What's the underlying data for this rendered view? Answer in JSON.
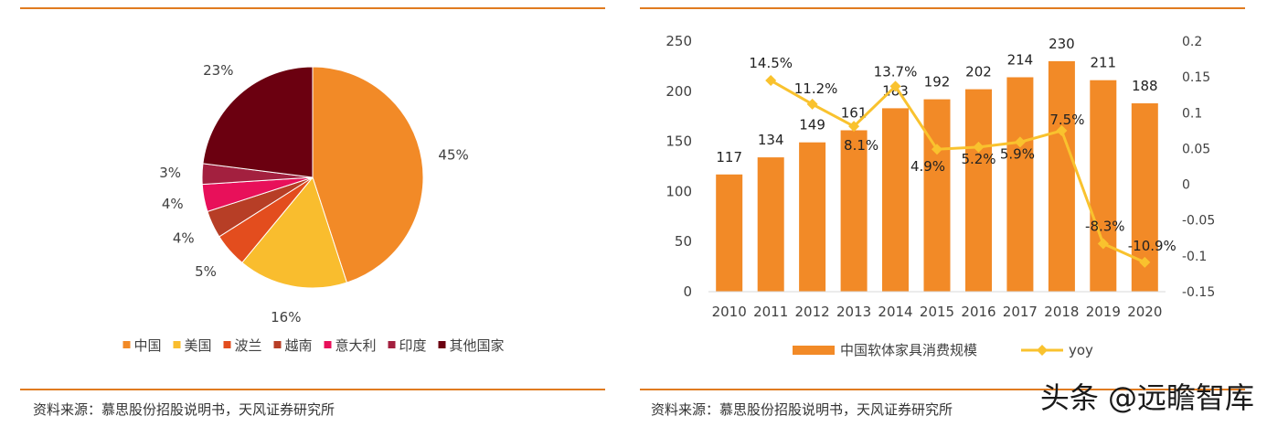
{
  "colors": {
    "rule": "#e07b20",
    "bar": "#f28a27",
    "yoy": "#f9c22e"
  },
  "left": {
    "source": "资料来源：慕思股份招股说明书，天风证券研究所"
  },
  "right": {
    "source": "资料来源：慕思股份招股说明书，天风证券研究所"
  },
  "watermark": "头条 @远瞻智库",
  "chart_data": [
    {
      "type": "pie",
      "title": "",
      "slices": [
        {
          "label": "中国",
          "value": 45,
          "value_label": "45%",
          "color": "#f28a27"
        },
        {
          "label": "美国",
          "value": 16,
          "value_label": "16%",
          "color": "#f9bd2e"
        },
        {
          "label": "波兰",
          "value": 5,
          "value_label": "5%",
          "color": "#e34d1e"
        },
        {
          "label": "越南",
          "value": 4,
          "value_label": "4%",
          "color": "#b73e26"
        },
        {
          "label": "意大利",
          "value": 4,
          "value_label": "4%",
          "color": "#e8105a"
        },
        {
          "label": "印度",
          "value": 3,
          "value_label": "3%",
          "color": "#a3203f"
        },
        {
          "label": "其他国家",
          "value": 23,
          "value_label": "23%",
          "color": "#6b0010"
        }
      ],
      "legend_position": "bottom"
    },
    {
      "type": "bar+line",
      "categories": [
        "2010",
        "2011",
        "2012",
        "2013",
        "2014",
        "2015",
        "2016",
        "2017",
        "2018",
        "2019",
        "2020"
      ],
      "series": [
        {
          "name": "中国软体家具消费规模",
          "type": "bar",
          "axis": "left",
          "values": [
            117,
            134,
            149,
            161,
            183,
            192,
            202,
            214,
            230,
            211,
            188
          ],
          "labels": [
            "117",
            "134",
            "149",
            "161",
            "183",
            "192",
            "202",
            "214",
            "230",
            "211",
            "188"
          ]
        },
        {
          "name": "yoy",
          "type": "line",
          "axis": "right",
          "values": [
            null,
            0.145,
            0.112,
            0.081,
            0.137,
            0.049,
            0.052,
            0.059,
            0.075,
            -0.083,
            -0.109
          ],
          "labels": [
            "",
            "14.5%",
            "11.2%",
            "8.1%",
            "13.7%",
            "4.9%",
            "5.2%",
            "5.9%",
            "7.5%",
            "-8.3%",
            "-10.9%"
          ]
        }
      ],
      "ylim_left": [
        0,
        250
      ],
      "yticks_left": [
        "0",
        "50",
        "100",
        "150",
        "200",
        "250"
      ],
      "ylim_right": [
        -0.15,
        0.2
      ],
      "yticks_right": [
        "-0.15",
        "-0.1",
        "-0.05",
        "0",
        "0.05",
        "0.1",
        "0.15",
        "0.2"
      ],
      "legend_position": "bottom"
    }
  ]
}
